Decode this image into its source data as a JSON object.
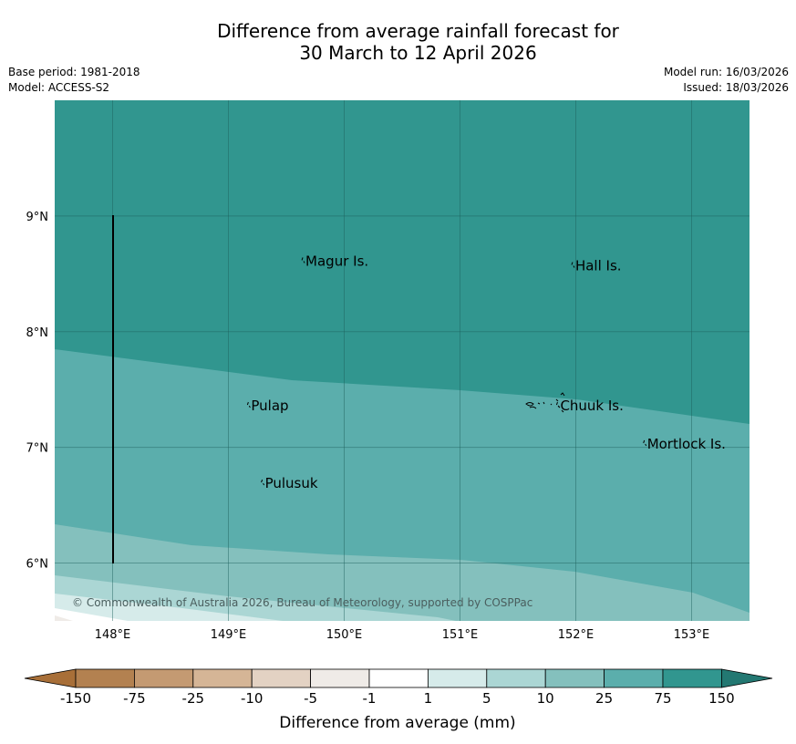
{
  "title": {
    "line1": "Difference from average rainfall forecast for",
    "line2": "30 March to 12 April 2026"
  },
  "meta": {
    "base_period": "Base period: 1981-2018",
    "model": "Model: ACCESS-S2",
    "model_run": "Model run: 16/03/2026",
    "issued": "Issued: 18/03/2026"
  },
  "map": {
    "lon_range": [
      147.5,
      153.5
    ],
    "lat_range": [
      5.5,
      10.0
    ],
    "x_ticks": [
      "148°E",
      "149°E",
      "150°E",
      "151°E",
      "152°E",
      "153°E"
    ],
    "y_ticks": [
      "6°N",
      "7°N",
      "8°N",
      "9°N"
    ],
    "copyright": "© Commonwealth of Australia 2026, Bureau of Meteorology, supported by COSPPac",
    "places": [
      {
        "name": "Magur Is.",
        "lon": 149.65,
        "lat": 8.57
      },
      {
        "name": "Hall Is.",
        "lon": 151.98,
        "lat": 8.53
      },
      {
        "name": "Pulap",
        "lon": 149.18,
        "lat": 7.32
      },
      {
        "name": "Chuuk Is.",
        "lon": 151.85,
        "lat": 7.32
      },
      {
        "name": "Mortlock Is.",
        "lon": 152.6,
        "lat": 6.99
      },
      {
        "name": "Pulusuk",
        "lon": 149.3,
        "lat": 6.65
      }
    ]
  },
  "colorbar": {
    "title": "Difference from average (mm)",
    "ticks": [
      "-150",
      "-75",
      "-25",
      "-10",
      "-5",
      "-1",
      "1",
      "5",
      "10",
      "25",
      "75",
      "150"
    ],
    "colors": [
      "#a86f38",
      "#b38150",
      "#c49a72",
      "#d5b596",
      "#e3d2c3",
      "#efebe7",
      "#ffffff",
      "#d6ebea",
      "#abd6d4",
      "#84c0bd",
      "#5baeac",
      "#31968f",
      "#237872"
    ]
  }
}
